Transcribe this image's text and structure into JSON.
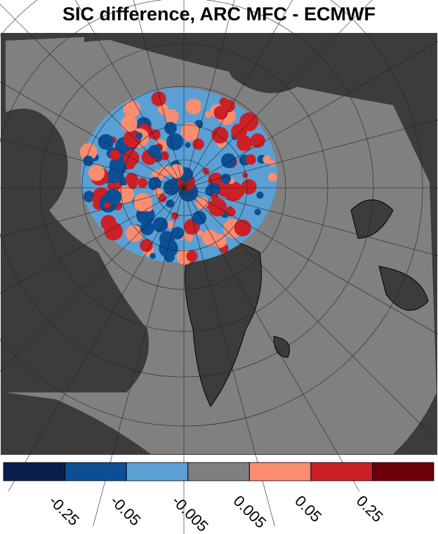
{
  "title": "SIC difference, ARC MFC - ECMWF",
  "colorbar": {
    "colors": [
      "#0b1f4e",
      "#0b4f96",
      "#5aa0d4",
      "#7f7f7f",
      "#fa8c70",
      "#cc1f26",
      "#6b0008"
    ],
    "ticks": [
      -0.25,
      -0.05,
      -0.005,
      0.005,
      0.05,
      0.25
    ]
  }
}
